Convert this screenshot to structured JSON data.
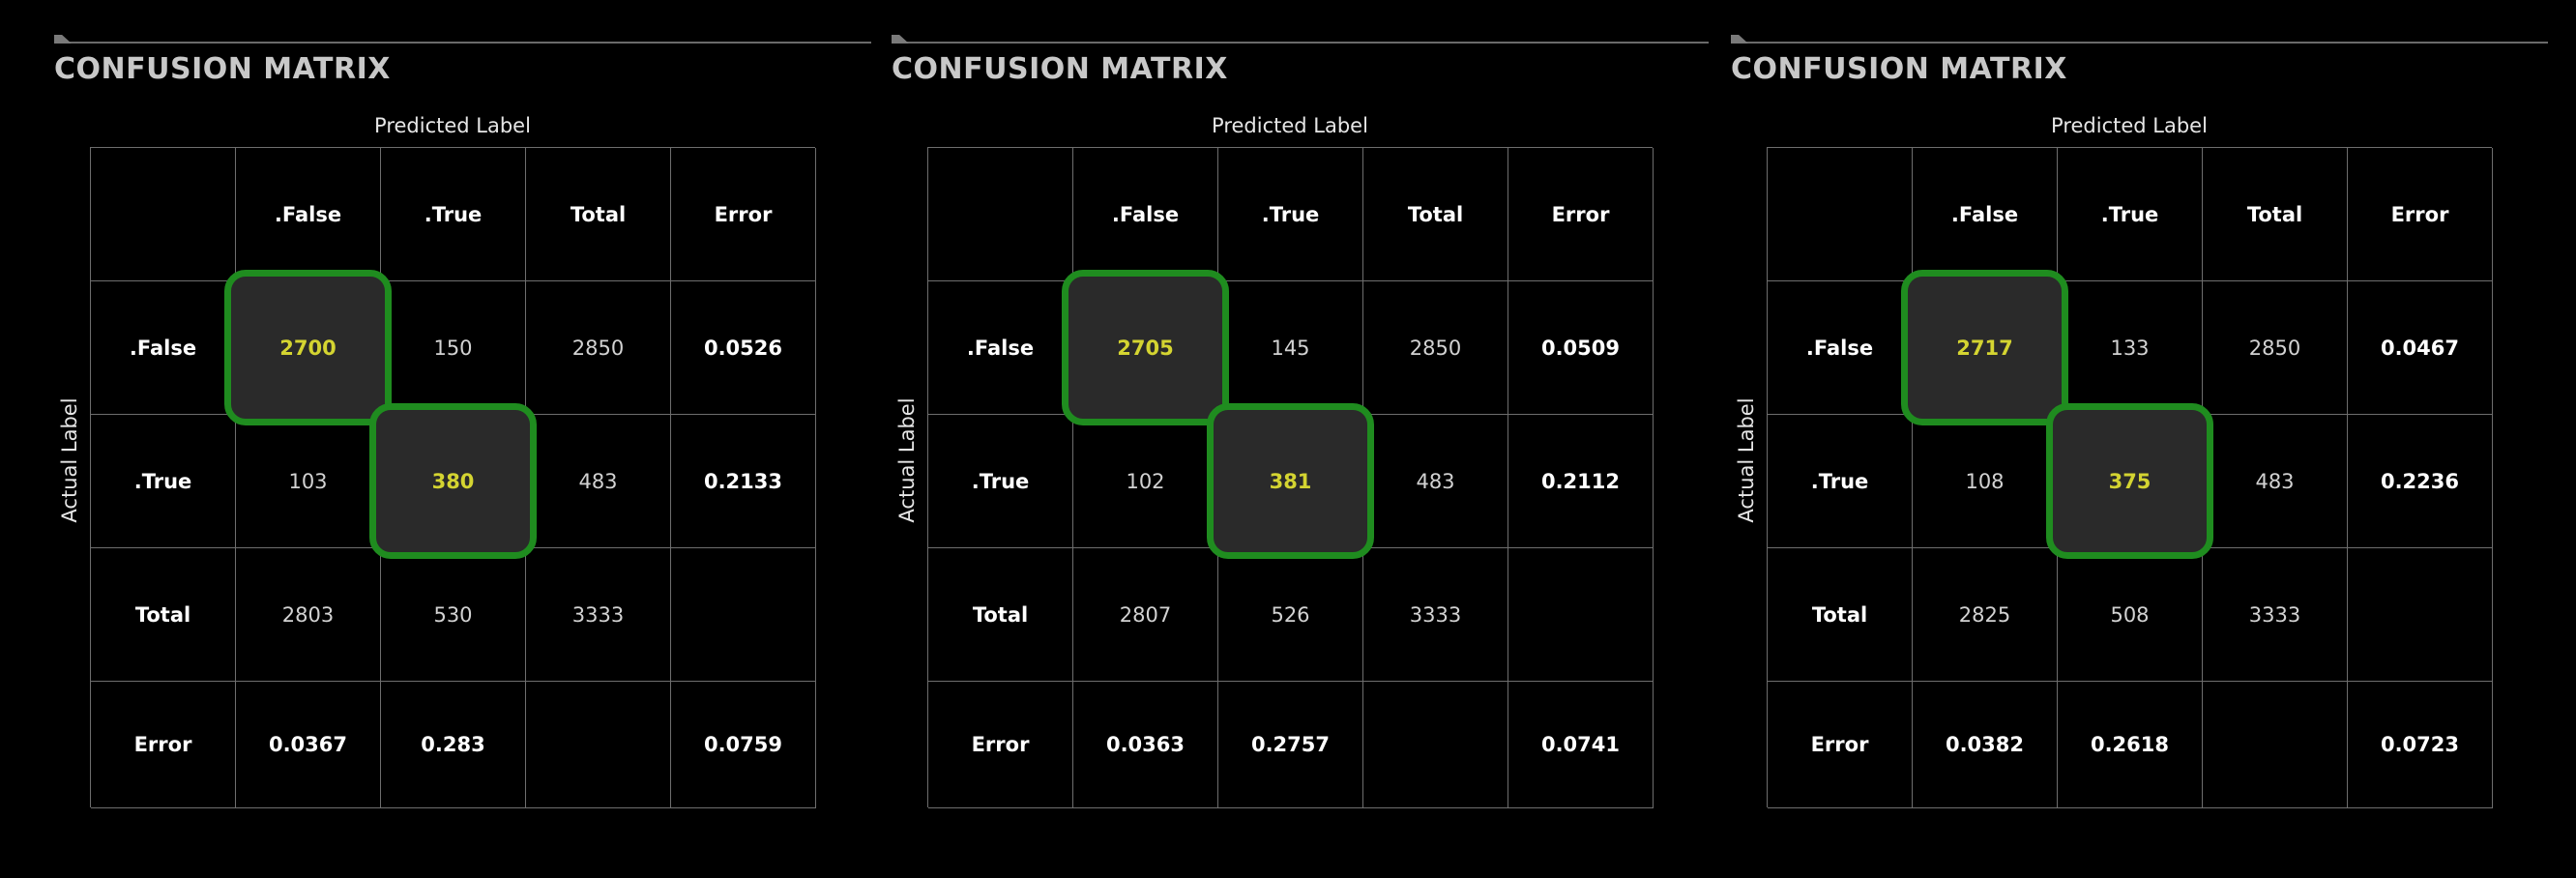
{
  "colors": {
    "background": "#000000",
    "grid": "#6e6e6e",
    "highlight_border": "#1f8c1f",
    "highlight_fill": "#2a2a2a",
    "diagonal_text": "#d4d431"
  },
  "panels": [
    {
      "title": "CONFUSION MATRIX",
      "xlabel": "Predicted Label",
      "ylabel": "Actual Label",
      "columns": [
        ".False",
        ".True",
        "Total",
        "Error"
      ],
      "rows": [
        {
          "label": ".False",
          "values": [
            "2700",
            "150",
            "2850",
            "0.0526"
          ]
        },
        {
          "label": ".True",
          "values": [
            "103",
            "380",
            "483",
            "0.2133"
          ]
        },
        {
          "label": "Total",
          "values": [
            "2803",
            "530",
            "3333",
            ""
          ]
        },
        {
          "label": "Error",
          "values": [
            "0.0367",
            "0.283",
            "",
            "0.0759"
          ]
        }
      ]
    },
    {
      "title": "CONFUSION MATRIX",
      "xlabel": "Predicted Label",
      "ylabel": "Actual Label",
      "columns": [
        ".False",
        ".True",
        "Total",
        "Error"
      ],
      "rows": [
        {
          "label": ".False",
          "values": [
            "2705",
            "145",
            "2850",
            "0.0509"
          ]
        },
        {
          "label": ".True",
          "values": [
            "102",
            "381",
            "483",
            "0.2112"
          ]
        },
        {
          "label": "Total",
          "values": [
            "2807",
            "526",
            "3333",
            ""
          ]
        },
        {
          "label": "Error",
          "values": [
            "0.0363",
            "0.2757",
            "",
            "0.0741"
          ]
        }
      ]
    },
    {
      "title": "CONFUSION MATRIX",
      "xlabel": "Predicted Label",
      "ylabel": "Actual Label",
      "columns": [
        ".False",
        ".True",
        "Total",
        "Error"
      ],
      "rows": [
        {
          "label": ".False",
          "values": [
            "2717",
            "133",
            "2850",
            "0.0467"
          ]
        },
        {
          "label": ".True",
          "values": [
            "108",
            "375",
            "483",
            "0.2236"
          ]
        },
        {
          "label": "Total",
          "values": [
            "2825",
            "508",
            "3333",
            ""
          ]
        },
        {
          "label": "Error",
          "values": [
            "0.0382",
            "0.2618",
            "",
            "0.0723"
          ]
        }
      ]
    }
  ],
  "chart_data": [
    {
      "type": "table",
      "title": "CONFUSION MATRIX",
      "xlabel": "Predicted Label",
      "ylabel": "Actual Label",
      "columns": [
        ".False",
        ".True",
        "Total",
        "Error"
      ],
      "row_labels": [
        ".False",
        ".True",
        "Total",
        "Error"
      ],
      "cells": [
        [
          2700,
          150,
          2850,
          0.0526
        ],
        [
          103,
          380,
          483,
          0.2133
        ],
        [
          2803,
          530,
          3333,
          null
        ],
        [
          0.0367,
          0.283,
          null,
          0.0759
        ]
      ],
      "highlighted_cells": [
        [
          0,
          0
        ],
        [
          1,
          1
        ]
      ]
    },
    {
      "type": "table",
      "title": "CONFUSION MATRIX",
      "xlabel": "Predicted Label",
      "ylabel": "Actual Label",
      "columns": [
        ".False",
        ".True",
        "Total",
        "Error"
      ],
      "row_labels": [
        ".False",
        ".True",
        "Total",
        "Error"
      ],
      "cells": [
        [
          2705,
          145,
          2850,
          0.0509
        ],
        [
          102,
          381,
          483,
          0.2112
        ],
        [
          2807,
          526,
          3333,
          null
        ],
        [
          0.0363,
          0.2757,
          null,
          0.0741
        ]
      ],
      "highlighted_cells": [
        [
          0,
          0
        ],
        [
          1,
          1
        ]
      ]
    },
    {
      "type": "table",
      "title": "CONFUSION MATRIX",
      "xlabel": "Predicted Label",
      "ylabel": "Actual Label",
      "columns": [
        ".False",
        ".True",
        "Total",
        "Error"
      ],
      "row_labels": [
        ".False",
        ".True",
        "Total",
        "Error"
      ],
      "cells": [
        [
          2717,
          133,
          2850,
          0.0467
        ],
        [
          108,
          375,
          483,
          0.2236
        ],
        [
          2825,
          508,
          3333,
          null
        ],
        [
          0.0382,
          0.2618,
          null,
          0.0723
        ]
      ],
      "highlighted_cells": [
        [
          0,
          0
        ],
        [
          1,
          1
        ]
      ]
    }
  ]
}
